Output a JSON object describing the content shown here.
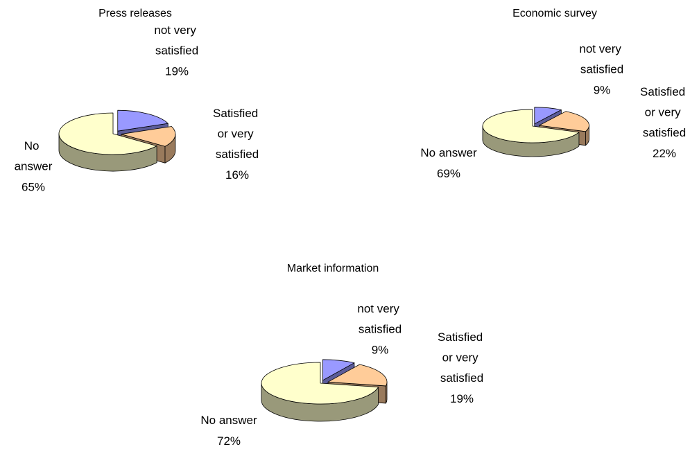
{
  "chart_data": [
    {
      "type": "pie",
      "title": "Press releases",
      "categories": [
        "not very satisfied",
        "Satisfied or very satisfied",
        "No answer"
      ],
      "values": [
        19,
        16,
        65
      ],
      "value_labels": [
        "19%",
        "16%",
        "65%"
      ],
      "colors": [
        "#9999ff",
        "#ffcc99",
        "#ffffcc"
      ]
    },
    {
      "type": "pie",
      "title": "Economic survey",
      "categories": [
        "not very satisfied",
        "Satisfied or very satisfied",
        "No answer"
      ],
      "values": [
        9,
        22,
        69
      ],
      "value_labels": [
        "9%",
        "22%",
        "69%"
      ],
      "colors": [
        "#9999ff",
        "#ffcc99",
        "#ffffcc"
      ]
    },
    {
      "type": "pie",
      "title": "Market information",
      "categories": [
        "not very satisfied",
        "Satisfied or very satisfied",
        "No answer"
      ],
      "values": [
        9,
        19,
        72
      ],
      "value_labels": [
        "9%",
        "19%",
        "72%"
      ],
      "colors": [
        "#9999ff",
        "#ffcc99",
        "#ffffcc"
      ]
    }
  ]
}
